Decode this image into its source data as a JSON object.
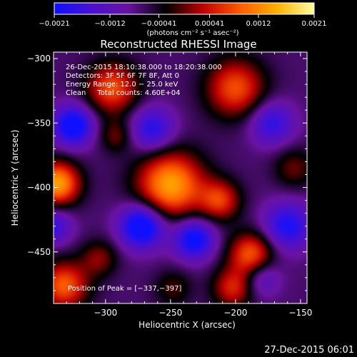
{
  "chart_data": {
    "type": "heatmap",
    "title": "Reconstructed RHESSI Image",
    "xlabel": "Heliocentric X (arcsec)",
    "ylabel": "Heliocentric Y (arcsec)",
    "xlim": [
      -340,
      -145
    ],
    "ylim": [
      -490,
      -295
    ],
    "x_ticks": [
      {
        "value": -300,
        "label": "−300"
      },
      {
        "value": -250,
        "label": "−250"
      },
      {
        "value": -200,
        "label": "−200"
      },
      {
        "value": -150,
        "label": "−150"
      }
    ],
    "y_ticks": [
      {
        "value": -300,
        "label": "−300"
      },
      {
        "value": -350,
        "label": "−350"
      },
      {
        "value": -400,
        "label": "−400"
      },
      {
        "value": -450,
        "label": "−450"
      }
    ],
    "colorbar": {
      "range": [
        -0.0021,
        0.0021
      ],
      "ticks": [
        {
          "value": -0.0021,
          "label": "−0.0021"
        },
        {
          "value": -0.0012,
          "label": "−0.0012"
        },
        {
          "value": -0.00041,
          "label": "−0.00041"
        },
        {
          "value": 0.00041,
          "label": "0.00041"
        },
        {
          "value": 0.0012,
          "label": "0.0012"
        },
        {
          "value": 0.0021,
          "label": "0.0021"
        }
      ],
      "units": "(photons cm⁻² s⁻¹ asec⁻²)",
      "colors": [
        "#1010ff",
        "#4a10d0",
        "#6a12a0",
        "#000000",
        "#c00000",
        "#ff5a00",
        "#ffb000",
        "#ffffa0"
      ]
    },
    "info_lines": [
      "26-Dec-2015 18:10:38.000 to 18:20:38.000",
      "Detectors: 3F 5F 6F 7F 8F, Att 0",
      "Energy Range: 12.0 − 25.0 keV",
      "Clean     Total counts: 4.60E+04"
    ],
    "peak_label": "Position of Peak = [−337,−397]",
    "peak": {
      "x": -337,
      "y": -397
    },
    "sources": [
      {
        "x": -337,
        "y": -397,
        "amp": 0.0021,
        "sigma": 12
      },
      {
        "x": -332,
        "y": -476,
        "amp": 0.0016,
        "sigma": 13
      },
      {
        "x": -250,
        "y": -398,
        "amp": 0.0021,
        "sigma": 18
      },
      {
        "x": -295,
        "y": -323,
        "amp": 0.0015,
        "sigma": 14
      },
      {
        "x": -200,
        "y": -323,
        "amp": 0.0015,
        "sigma": 16
      },
      {
        "x": -212,
        "y": -410,
        "amp": 0.0013,
        "sigma": 11
      },
      {
        "x": -188,
        "y": -452,
        "amp": 0.0016,
        "sigma": 12
      },
      {
        "x": -202,
        "y": -478,
        "amp": 0.0012,
        "sigma": 11
      },
      {
        "x": -305,
        "y": -455,
        "amp": 0.0008,
        "sigma": 10
      },
      {
        "x": -292,
        "y": -360,
        "amp": 0.0007,
        "sigma": 9
      },
      {
        "x": -155,
        "y": -385,
        "amp": 0.0007,
        "sigma": 11
      },
      {
        "x": -248,
        "y": -478,
        "amp": 0.0006,
        "sigma": 10
      },
      {
        "x": -325,
        "y": -352,
        "amp": -0.0017,
        "sigma": 11
      },
      {
        "x": -272,
        "y": -430,
        "amp": -0.0019,
        "sigma": 12
      },
      {
        "x": -232,
        "y": -440,
        "amp": -0.0016,
        "sigma": 11
      },
      {
        "x": -264,
        "y": -355,
        "amp": -0.0012,
        "sigma": 12
      },
      {
        "x": -160,
        "y": -430,
        "amp": -0.0013,
        "sigma": 13
      },
      {
        "x": -172,
        "y": -350,
        "amp": -0.0011,
        "sigma": 12
      },
      {
        "x": -340,
        "y": -430,
        "amp": -0.001,
        "sigma": 10
      },
      {
        "x": -180,
        "y": -470,
        "amp": -0.0008,
        "sigma": 10
      }
    ],
    "background": -0.0007
  },
  "footer": {
    "timestamp": "27-Dec-2015 06:01"
  }
}
